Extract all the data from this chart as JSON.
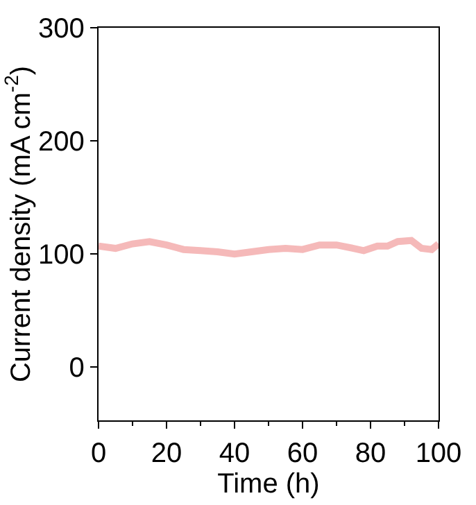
{
  "chart_data": {
    "type": "line",
    "xlabel": "Time (h)",
    "ylabel": "Current density (mA cm$^{-2}$)",
    "xlim": [
      0,
      100
    ],
    "xticks": [
      0,
      20,
      40,
      60,
      80,
      100
    ],
    "ylim": [
      -47,
      300
    ],
    "yticks": [
      0,
      100,
      200,
      300
    ],
    "marker": "none",
    "line_style": "solid",
    "series": [
      {
        "color": "#f5b9b9",
        "x": [
          0,
          5,
          10,
          15,
          20,
          25,
          30,
          35,
          40,
          45,
          50,
          55,
          60,
          65,
          70,
          75,
          78,
          82,
          85,
          88,
          92,
          95,
          98,
          100
        ],
        "values": [
          107,
          105,
          109,
          111,
          108,
          104,
          103,
          102,
          100,
          102,
          104,
          105,
          104,
          108,
          108,
          105,
          103,
          107,
          107,
          111,
          112,
          105,
          104,
          109
        ]
      }
    ]
  }
}
